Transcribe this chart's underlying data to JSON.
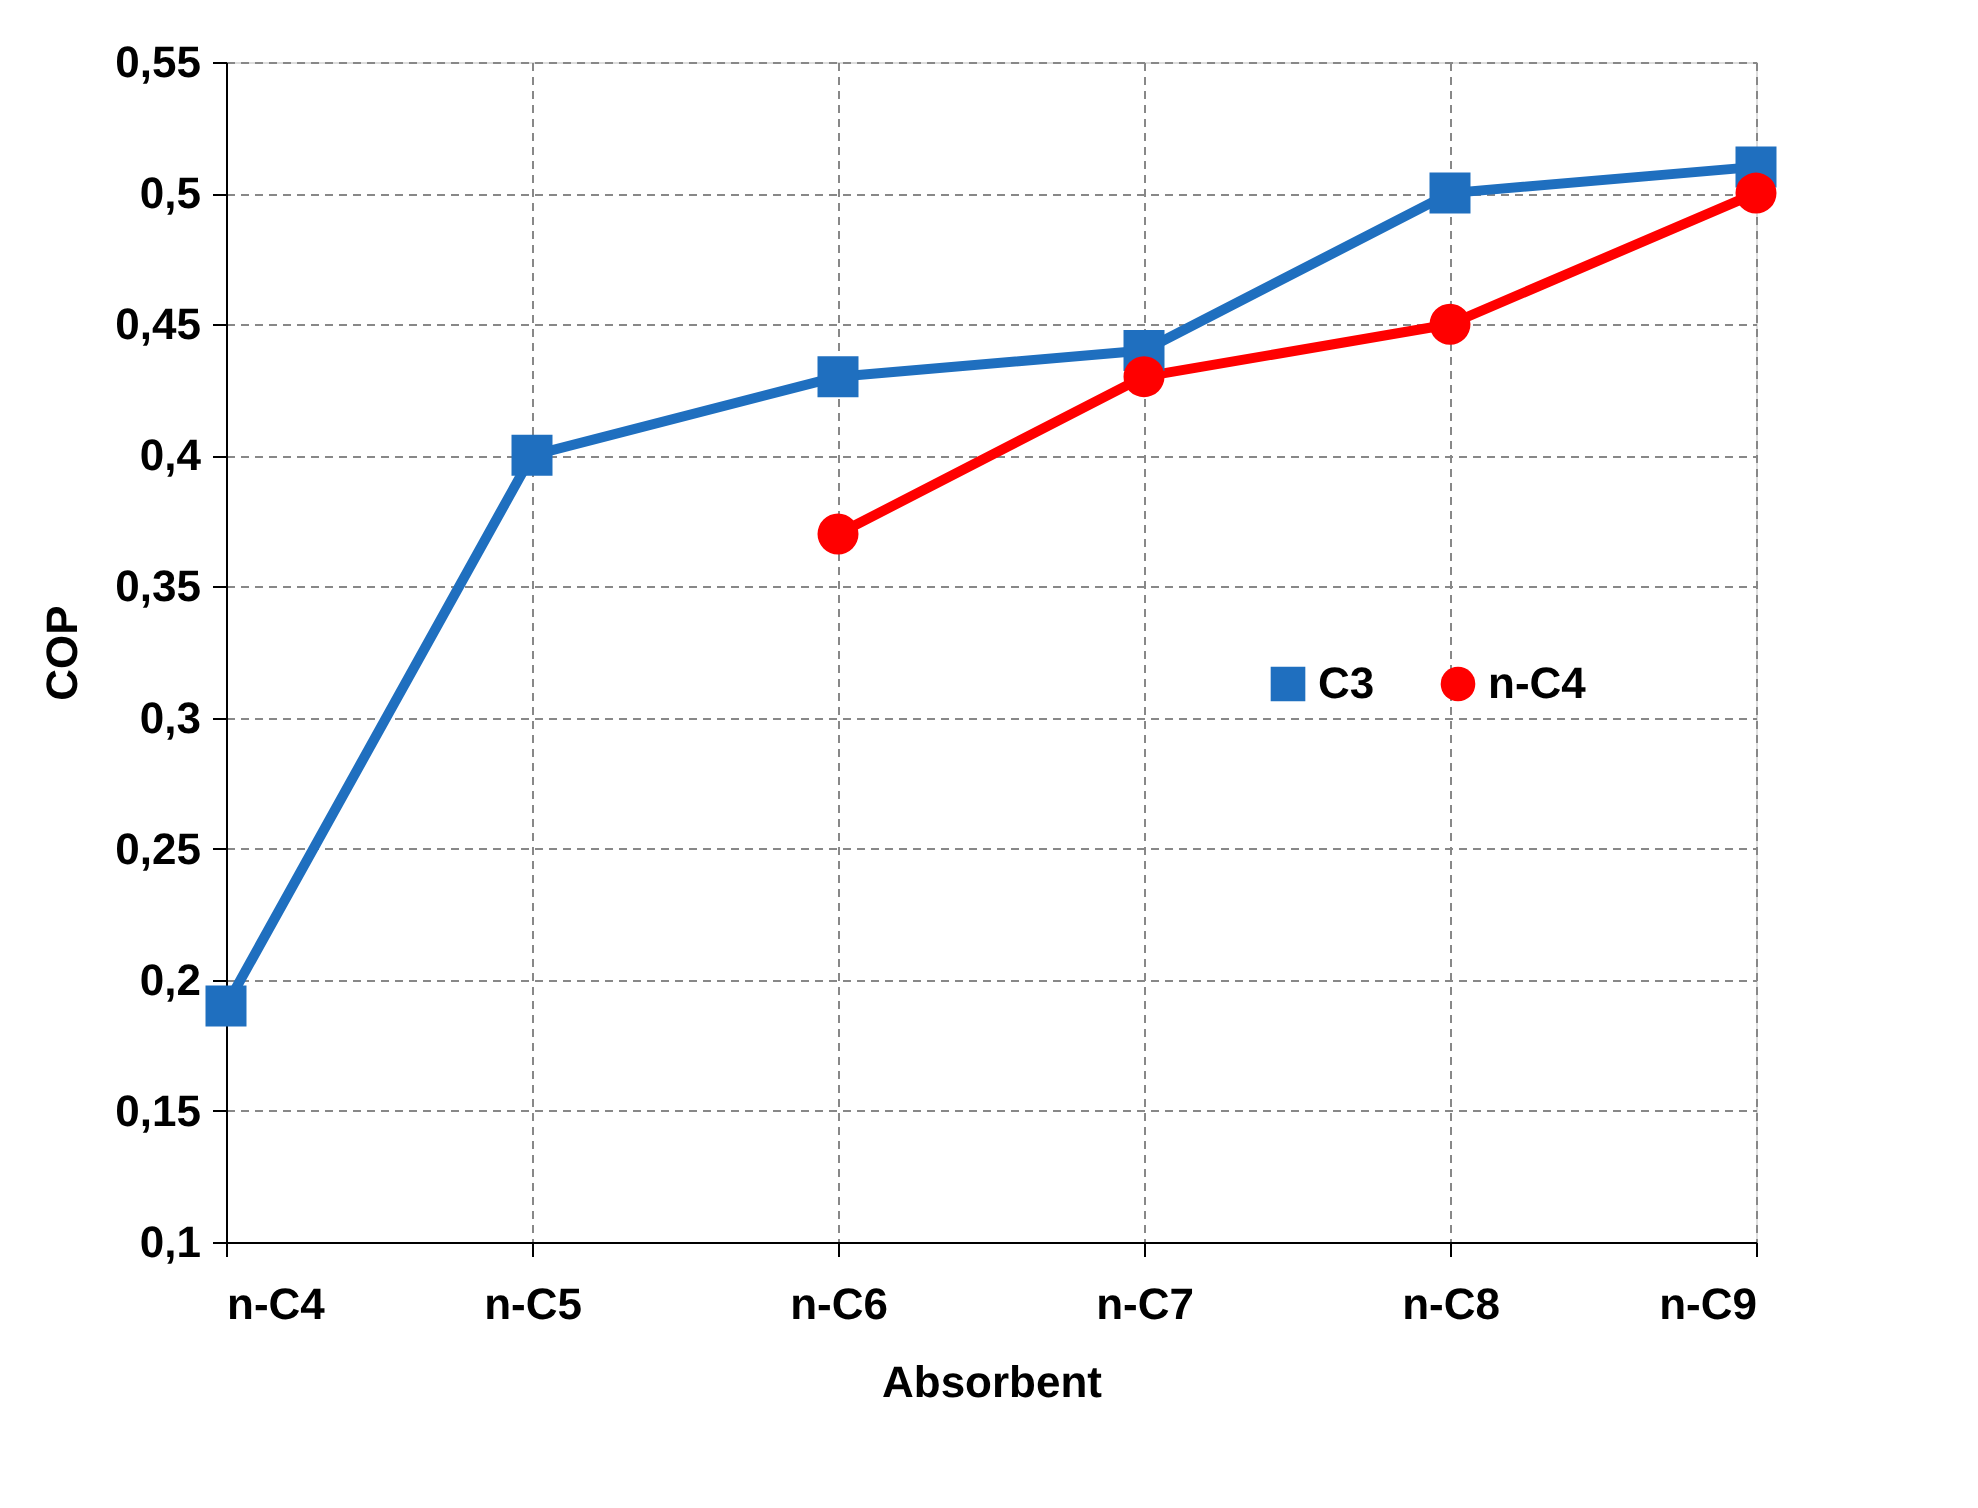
{
  "chart_data": {
    "type": "line",
    "xlabel": "Absorbent",
    "ylabel": "COP",
    "categories": [
      "n-C4",
      "n-C5",
      "n-C6",
      "n-C7",
      "n-C8",
      "n-C9"
    ],
    "series": [
      {
        "name": "C3",
        "color": "#1f6fbf",
        "marker": "square",
        "values": [
          0.19,
          0.4,
          0.43,
          0.44,
          0.5,
          0.51
        ]
      },
      {
        "name": "n-C4",
        "color": "#ff0000",
        "marker": "circle",
        "values": [
          null,
          null,
          0.37,
          0.43,
          0.45,
          0.5
        ]
      }
    ],
    "ylim": [
      0.1,
      0.55
    ],
    "yticks": [
      {
        "value": 0.1,
        "label": "0,1"
      },
      {
        "value": 0.15,
        "label": "0,15"
      },
      {
        "value": 0.2,
        "label": "0,2"
      },
      {
        "value": 0.25,
        "label": "0,25"
      },
      {
        "value": 0.3,
        "label": "0,3"
      },
      {
        "value": 0.35,
        "label": "0,35"
      },
      {
        "value": 0.4,
        "label": "0,4"
      },
      {
        "value": 0.45,
        "label": "0,45"
      },
      {
        "value": 0.5,
        "label": "0,5"
      },
      {
        "value": 0.55,
        "label": "0,55"
      }
    ],
    "grid": true,
    "legend": "right",
    "line_style": "solid"
  }
}
